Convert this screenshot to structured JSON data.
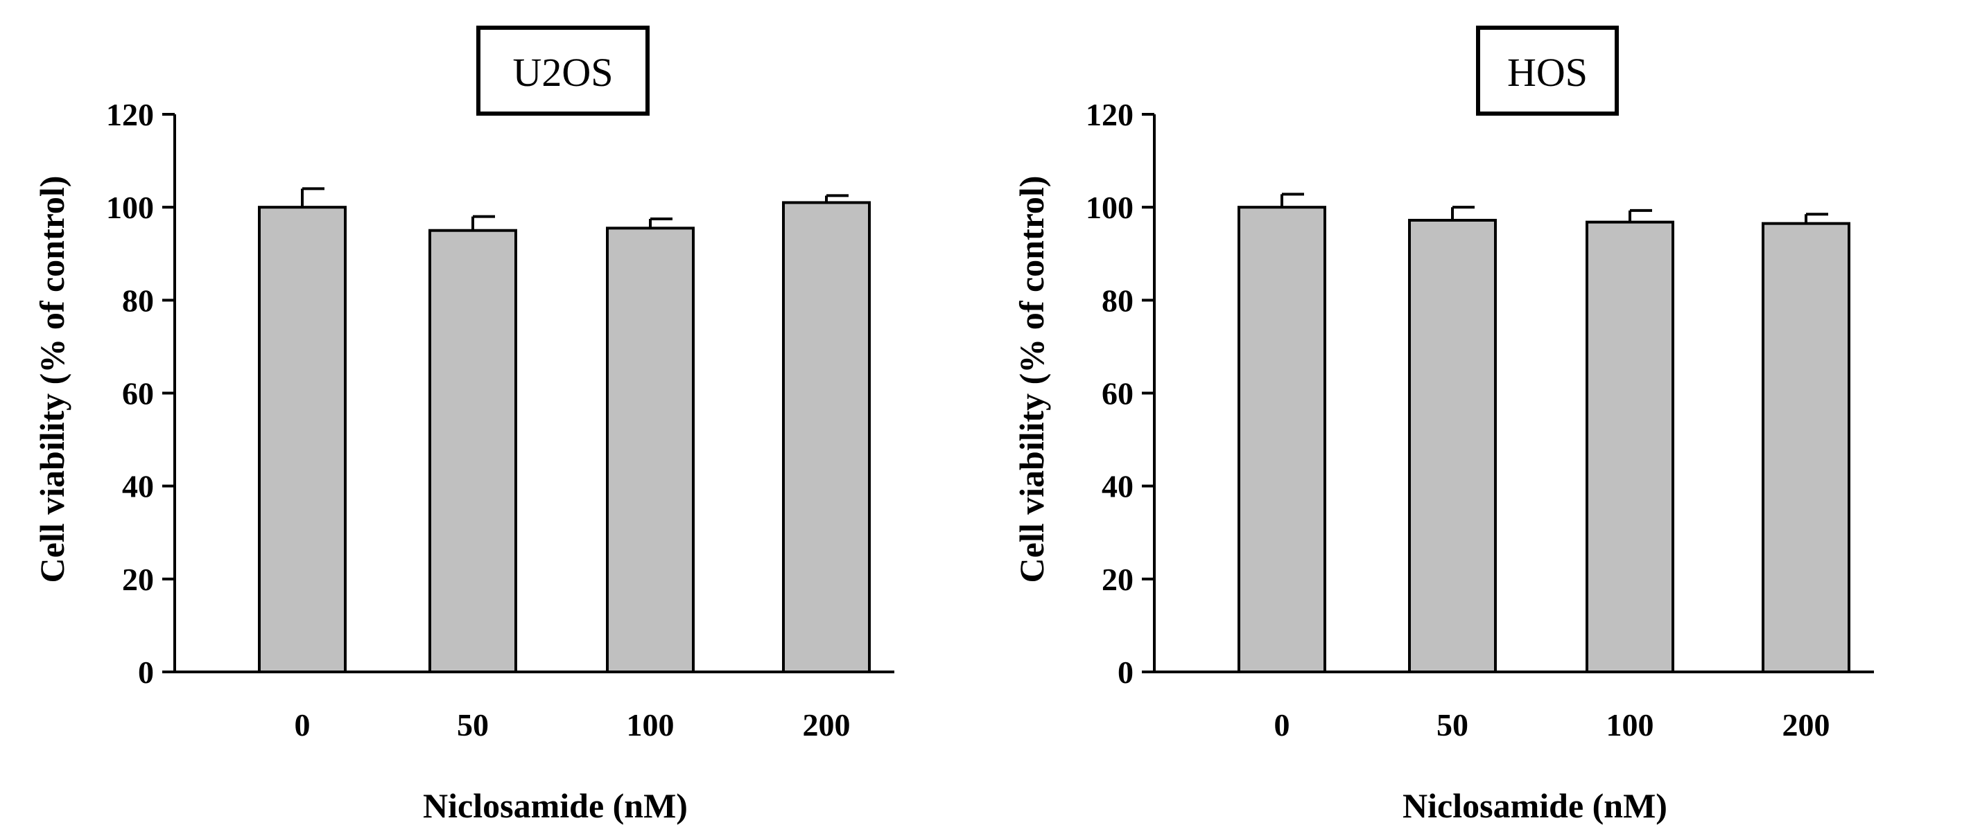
{
  "colors": {
    "bar_fill": "#c0c0c0",
    "stroke": "#000000",
    "background": "#ffffff"
  },
  "chart_data": [
    {
      "type": "bar",
      "title": "U2OS",
      "xlabel": "Niclosamide (nM)",
      "ylabel": "Cell viability (% of control)",
      "categories": [
        "0",
        "50",
        "100",
        "200"
      ],
      "values": [
        100,
        95,
        95.5,
        101
      ],
      "errors": [
        4,
        3,
        2,
        1.5
      ],
      "ylim": [
        0,
        120
      ],
      "yticks": [
        "0",
        "20",
        "40",
        "60",
        "80",
        "100",
        "120"
      ],
      "grid": false,
      "legend": "none"
    },
    {
      "type": "bar",
      "title": "HOS",
      "xlabel": "Niclosamide (nM)",
      "ylabel": "Cell viability (% of control)",
      "categories": [
        "0",
        "50",
        "100",
        "200"
      ],
      "values": [
        100,
        97.2,
        96.8,
        96.5
      ],
      "errors": [
        2.8,
        2.8,
        2.5,
        2
      ],
      "ylim": [
        0,
        120
      ],
      "yticks": [
        "0",
        "20",
        "40",
        "60",
        "80",
        "100",
        "120"
      ],
      "grid": false,
      "legend": "none"
    }
  ]
}
